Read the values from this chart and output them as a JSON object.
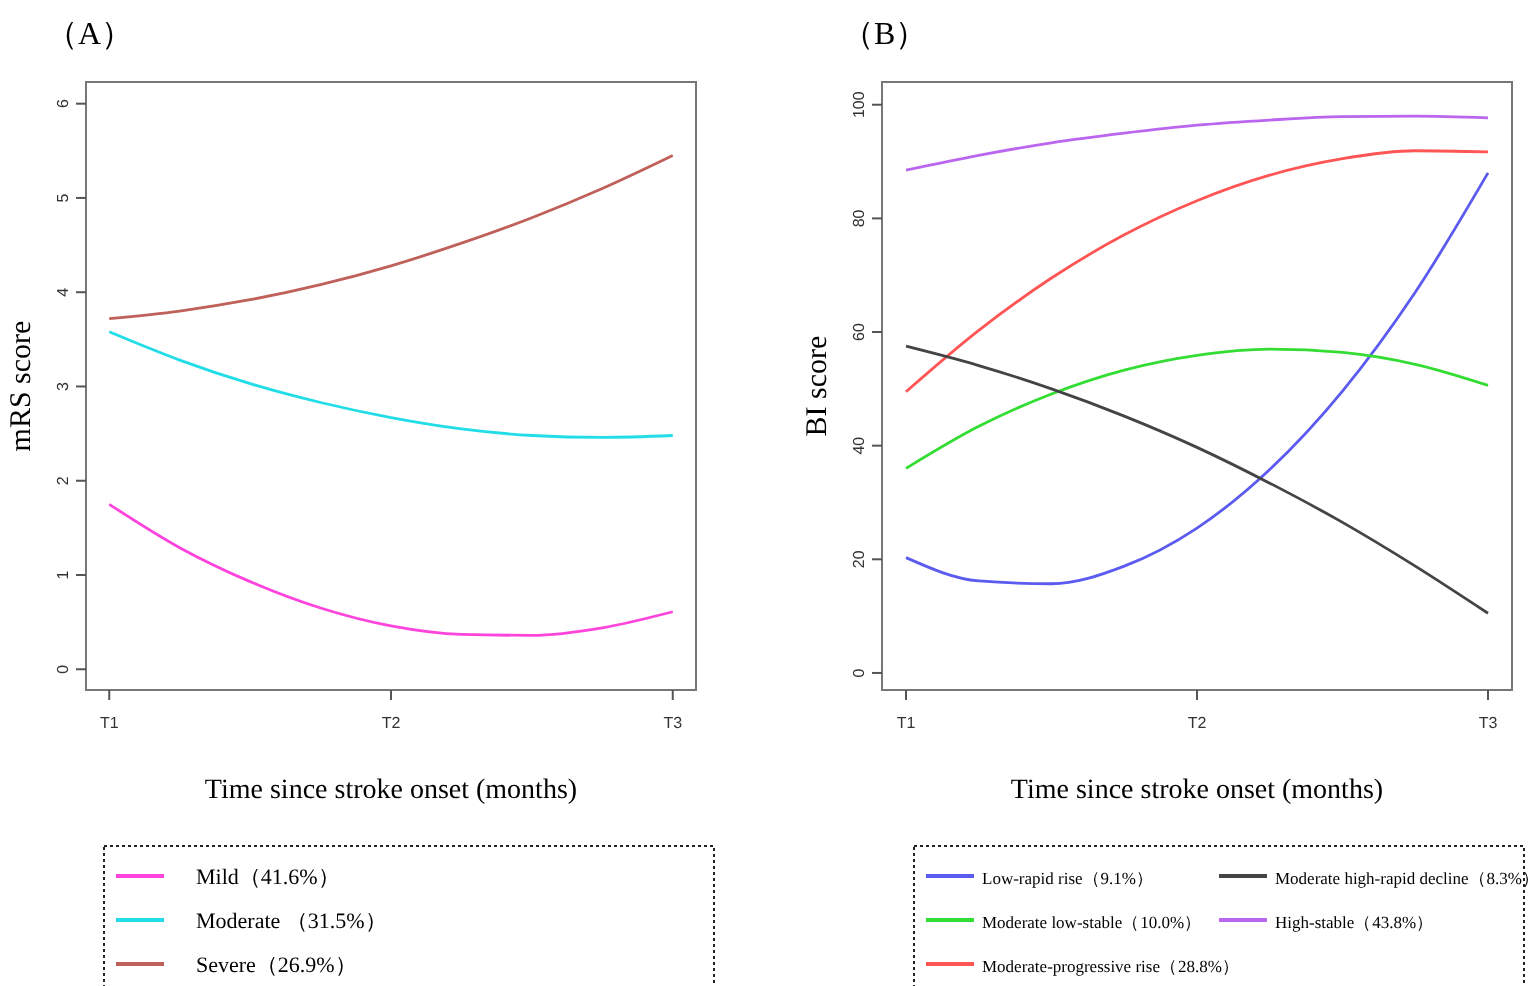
{
  "chart_data": [
    {
      "type": "line",
      "title": "（A）",
      "xlabel": "Time since stroke onset (months)",
      "ylabel": "mRS score",
      "categories": [
        "T1",
        null,
        null,
        null,
        "T2",
        null,
        null,
        null,
        "T3"
      ],
      "ylim": [
        -0.22,
        6.23
      ],
      "yticks": [
        0,
        1,
        2,
        3,
        4,
        5,
        6
      ],
      "legend": "bottom",
      "series": [
        {
          "name": "Mild（41.6%）",
          "color": "#ff44dd",
          "values": [
            1.75,
            1.29,
            0.93,
            0.65,
            0.46,
            0.37,
            0.36,
            0.44,
            0.61
          ]
        },
        {
          "name": "Moderate （31.5%）",
          "color": "#22dde8",
          "values": [
            3.58,
            3.28,
            3.03,
            2.83,
            2.67,
            2.55,
            2.48,
            2.46,
            2.48
          ]
        },
        {
          "name": "Severe（26.9%）",
          "color": "#c0605a",
          "values": [
            3.72,
            3.8,
            3.92,
            4.08,
            4.28,
            4.52,
            4.79,
            5.1,
            5.45
          ]
        }
      ]
    },
    {
      "type": "line",
      "title": "（B）",
      "xlabel": "Time since stroke onset (months)",
      "ylabel": "BI score",
      "categories": [
        "T1",
        null,
        null,
        null,
        "T2",
        null,
        null,
        null,
        "T3"
      ],
      "ylim": [
        -3,
        104
      ],
      "yticks": [
        0,
        20,
        40,
        60,
        80,
        100
      ],
      "legend": "bottom",
      "series": [
        {
          "name": "Low-rapid rise（9.1%）",
          "color": "#5b5bf0",
          "values": [
            20.3,
            16.2,
            15.7,
            18.8,
            25.5,
            35.8,
            49.6,
            67.0,
            88.0
          ]
        },
        {
          "name": "Moderate low-stable（10.0%）",
          "color": "#33dd33",
          "values": [
            36.0,
            43.4,
            49.1,
            53.3,
            55.9,
            57.0,
            56.4,
            54.3,
            50.6
          ]
        },
        {
          "name": "Moderate-progressive rise（28.8%）",
          "color": "#ff5555",
          "values": [
            49.5,
            60.3,
            69.5,
            77.1,
            83.1,
            87.6,
            90.5,
            91.9,
            91.7
          ]
        },
        {
          "name": "Moderate high-rapid decline（8.3%）",
          "color": "#444444",
          "values": [
            57.5,
            54.1,
            50.0,
            45.2,
            39.7,
            33.4,
            26.5,
            18.8,
            10.5
          ]
        },
        {
          "name": "High-stable（43.8%）",
          "color": "#bb66ee",
          "values": [
            88.5,
            91.1,
            93.3,
            95.0,
            96.4,
            97.3,
            97.9,
            98.0,
            97.7
          ]
        }
      ]
    }
  ]
}
